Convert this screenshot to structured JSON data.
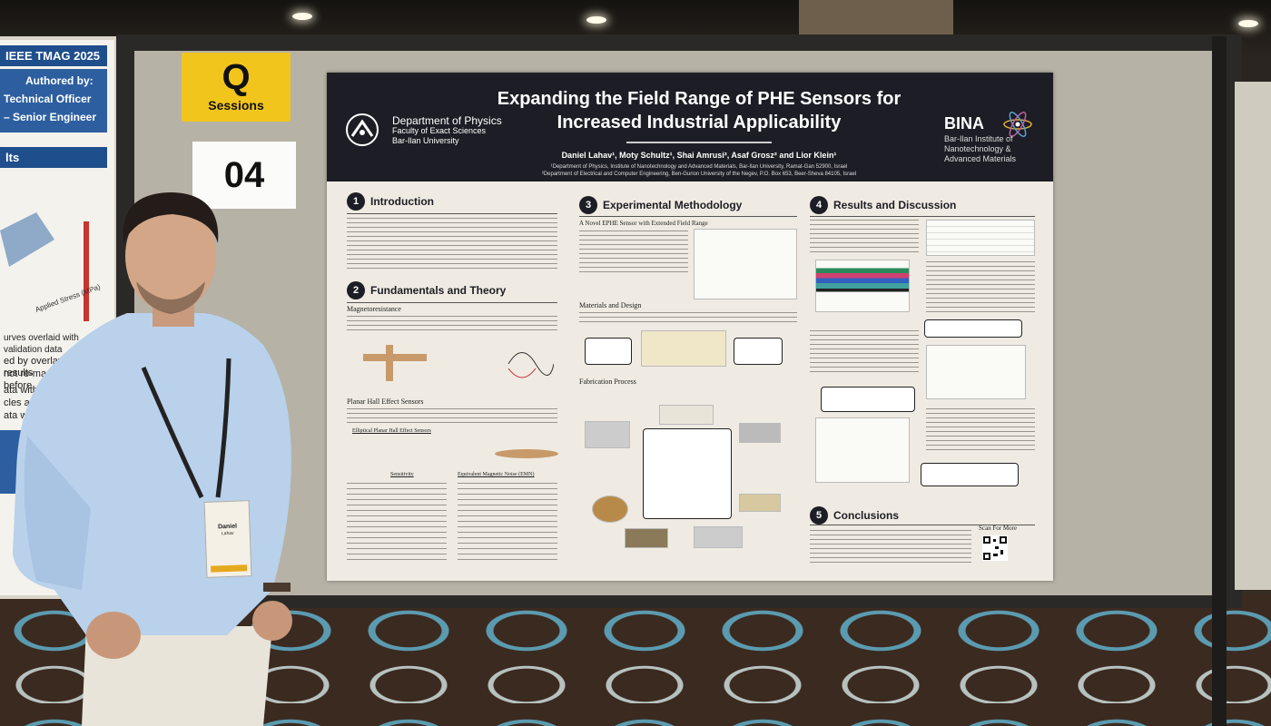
{
  "left_poster": {
    "header": "IEEE TMAG 2025",
    "authored_by": "Authored by:",
    "role_1": "Technical Officer",
    "role_2": "– Senior Engineer",
    "section": "lts",
    "caption": "urves overlaid with validation data",
    "body_1": "ed by overlaying test results",
    "body_2": "not re-magnetized before",
    "body_3": "ata with torque in",
    "body_4": "cles applied)",
    "body_5": "ata with torque in"
  },
  "session_sign": {
    "letter": "Q",
    "label": "Sessions"
  },
  "board_number": "04",
  "poster": {
    "title": "Expanding the Field Range of PHE Sensors for Increased Industrial Applicability",
    "department": "Department of Physics",
    "faculty": "Faculty of Exact Sciences",
    "university": "Bar-Ilan University",
    "institute_short": "BINA",
    "institute_full": "Bar-Ilan Institute of Nanotechnology & Advanced Materials",
    "authors": "Daniel Lahav¹, Moty Schultz¹, Shai Amrusi², Asaf Grosz² and Lior Klein¹",
    "affiliation_1": "¹Department of Physics, Institute of Nanotechnology and Advanced Materials, Bar-Ilan University, Ramat-Gan 52900, Israel",
    "affiliation_2": "²Department of Electrical and Computer Engineering, Ben-Gurion University of the Negev, P.O. Box 653, Beer-Sheva 84105, Israel",
    "sections": [
      {
        "num": "1",
        "title": "Introduction"
      },
      {
        "num": "2",
        "title": "Fundamentals and Theory"
      },
      {
        "num": "3",
        "title": "Experimental Methodology"
      },
      {
        "num": "4",
        "title": "Results and Discussion"
      },
      {
        "num": "5",
        "title": "Conclusions"
      }
    ],
    "subtitles": {
      "magnetoresistance": "Magnetoresistance",
      "planar_hall": "Planar Hall Effect Sensors",
      "elliptical_phe": "Elliptical Planar Hall Effect Sensors",
      "sensitivity": "Sensitivity",
      "emn": "Equivalent Magnetic Noise (EMN)",
      "novel_ephe": "A Novel EPHE Sensor with Extended Field Range",
      "materials": "Materials and Design",
      "fabrication": "Fabrication Process"
    },
    "scan_label": "Scan For More"
  },
  "badge": {
    "name": "Daniel",
    "surname": "Lahav"
  }
}
